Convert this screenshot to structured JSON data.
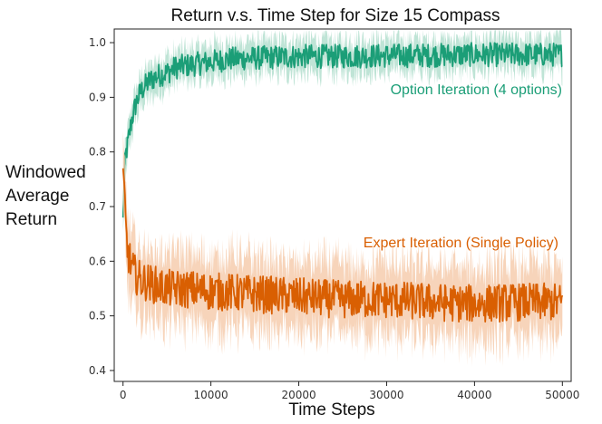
{
  "chart_data": {
    "type": "line",
    "title": "Return v.s. Time Step for Size 15 Compass",
    "xlabel": "Time Steps",
    "ylabel_lines": [
      "Windowed",
      "Average",
      "Return"
    ],
    "xlim": [
      -1000,
      51000
    ],
    "ylim": [
      0.38,
      1.025
    ],
    "x_ticks": [
      0,
      10000,
      20000,
      30000,
      40000,
      50000
    ],
    "y_ticks": [
      0.4,
      0.5,
      0.6,
      0.7,
      0.8,
      0.9,
      1.0
    ],
    "grid": false,
    "series": [
      {
        "name": "Option Iteration (4 options)",
        "color": "#1b9e77",
        "band_color": "#a9dbc8",
        "x": [
          0,
          250,
          500,
          1000,
          1500,
          2000,
          3000,
          4000,
          5000,
          6000,
          8000,
          10000,
          12000,
          15000,
          20000,
          25000,
          30000,
          35000,
          40000,
          45000,
          50000
        ],
        "values": [
          0.68,
          0.79,
          0.81,
          0.86,
          0.89,
          0.91,
          0.93,
          0.94,
          0.945,
          0.955,
          0.96,
          0.965,
          0.97,
          0.972,
          0.975,
          0.975,
          0.976,
          0.977,
          0.978,
          0.978,
          0.978
        ],
        "band_half_width": 0.03,
        "noise": 0.022
      },
      {
        "name": "Expert Iteration (Single Policy)",
        "color": "#d95f02",
        "band_color": "#f4c6a3",
        "x": [
          0,
          150,
          300,
          500,
          800,
          1200,
          2000,
          3000,
          5000,
          8000,
          10000,
          15000,
          20000,
          25000,
          30000,
          35000,
          40000,
          45000,
          50000
        ],
        "values": [
          0.77,
          0.74,
          0.66,
          0.62,
          0.6,
          0.58,
          0.565,
          0.56,
          0.55,
          0.548,
          0.545,
          0.54,
          0.535,
          0.53,
          0.53,
          0.525,
          0.522,
          0.525,
          0.525
        ],
        "band_half_width": 0.065,
        "noise": 0.035
      }
    ]
  }
}
